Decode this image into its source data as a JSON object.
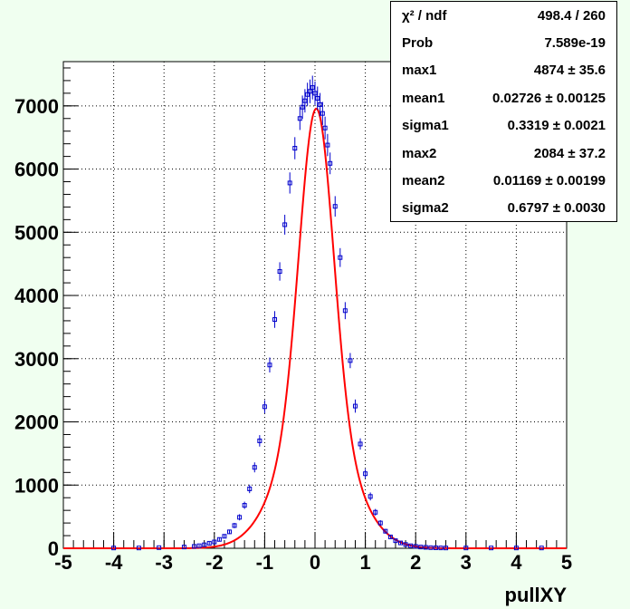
{
  "chart_data": {
    "type": "scatter",
    "xlabel": "pullXY",
    "ylabel": "",
    "xlim": [
      -5,
      5
    ],
    "ylim": [
      0,
      7700
    ],
    "grid": true,
    "x_ticks": [
      "-5",
      "-4",
      "-3",
      "-2",
      "-1",
      "0",
      "1",
      "2",
      "3",
      "4",
      "5"
    ],
    "y_ticks": [
      "0",
      "1000",
      "2000",
      "3000",
      "4000",
      "5000",
      "6000",
      "7000"
    ],
    "y_tick_values": [
      0,
      1000,
      2000,
      3000,
      4000,
      5000,
      6000,
      7000
    ],
    "series": [
      {
        "style": "histogram markers with error bars",
        "color": "#0000cc",
        "x": [
          -4.0,
          -3.5,
          -3.1,
          -2.6,
          -2.4,
          -2.3,
          -2.2,
          -2.1,
          -2.0,
          -1.9,
          -1.8,
          -1.7,
          -1.6,
          -1.5,
          -1.4,
          -1.3,
          -1.2,
          -1.1,
          -1.0,
          -0.9,
          -0.8,
          -0.7,
          -0.6,
          -0.5,
          -0.4,
          -0.3,
          -0.25,
          -0.2,
          -0.15,
          -0.1,
          -0.05,
          0.0,
          0.05,
          0.1,
          0.15,
          0.2,
          0.25,
          0.3,
          0.4,
          0.5,
          0.6,
          0.7,
          0.8,
          0.9,
          1.0,
          1.1,
          1.2,
          1.3,
          1.4,
          1.5,
          1.6,
          1.7,
          1.8,
          1.9,
          2.0,
          2.1,
          2.2,
          2.3,
          2.4,
          2.5,
          2.6,
          3.0,
          3.5,
          4.0,
          4.5
        ],
        "y": [
          5,
          5,
          10,
          20,
          30,
          40,
          55,
          80,
          100,
          140,
          190,
          260,
          360,
          490,
          680,
          940,
          1280,
          1700,
          2240,
          2900,
          3620,
          4380,
          5120,
          5780,
          6330,
          6800,
          6980,
          7080,
          7180,
          7230,
          7290,
          7200,
          7120,
          7020,
          6880,
          6650,
          6380,
          6090,
          5410,
          4600,
          3760,
          2970,
          2250,
          1650,
          1180,
          820,
          570,
          400,
          270,
          180,
          120,
          85,
          60,
          40,
          30,
          20,
          15,
          10,
          8,
          6,
          5,
          5,
          5,
          5,
          5
        ]
      },
      {
        "style": "fit curve",
        "color": "#ff0000",
        "function": "double gaussian",
        "max1": 4874,
        "mean1": 0.02726,
        "sigma1": 0.3319,
        "max2": 2084,
        "mean2": 0.01169,
        "sigma2": 0.6797
      }
    ],
    "stats_box": {
      "position": "top-right",
      "rows": [
        {
          "name": "χ² / ndf",
          "value": "498.4 / 260"
        },
        {
          "name": "Prob",
          "value": "7.589e-19"
        },
        {
          "name": "max1",
          "value": "4874 ± 35.6"
        },
        {
          "name": "mean1",
          "value": "0.02726 ± 0.00125"
        },
        {
          "name": "sigma1",
          "value": "0.3319 ± 0.0021"
        },
        {
          "name": "max2",
          "value": "2084 ± 37.2"
        },
        {
          "name": "mean2",
          "value": "0.01169 ± 0.00199"
        },
        {
          "name": "sigma2",
          "value": "0.6797 ± 0.0030"
        }
      ]
    }
  }
}
